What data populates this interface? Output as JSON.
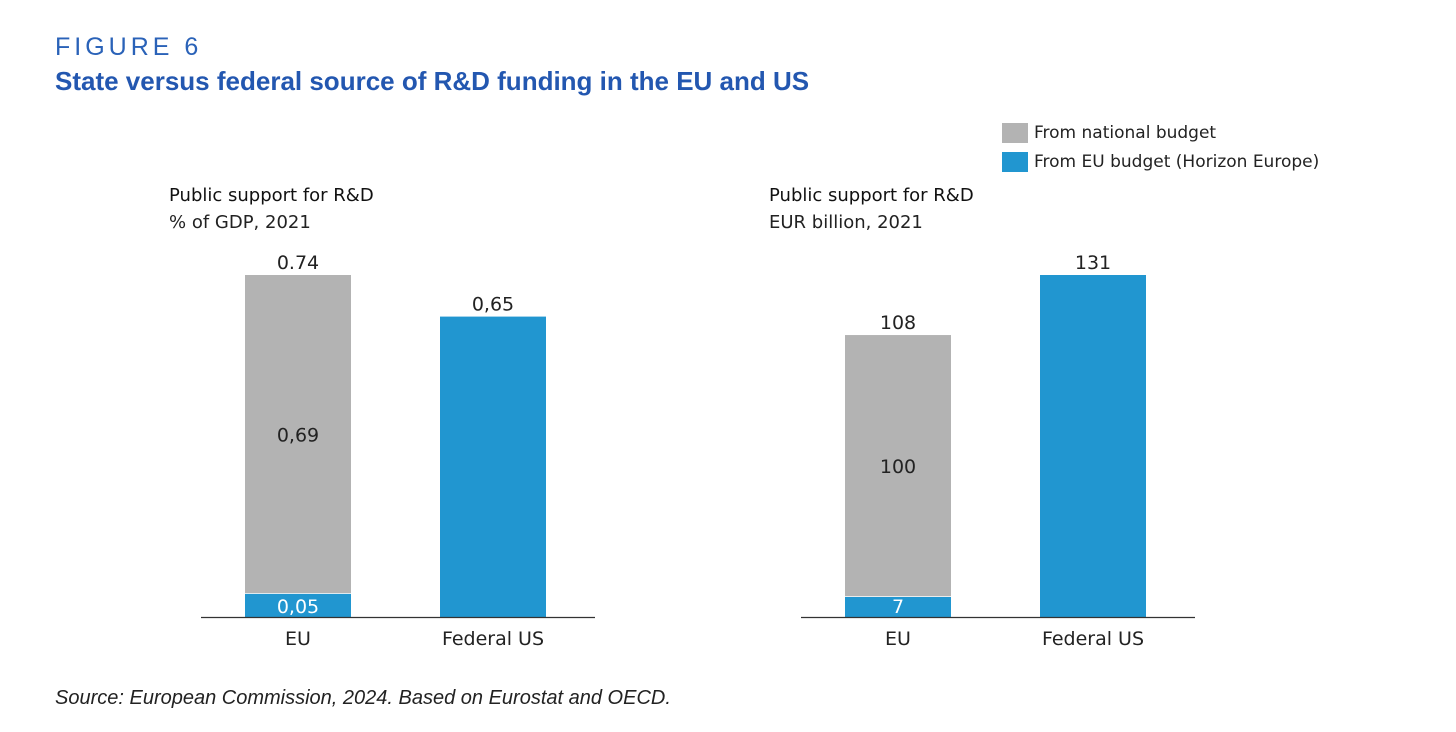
{
  "figure": {
    "label": "FIGURE 6",
    "title": "State versus federal source of R&D funding in the EU and US"
  },
  "legend": {
    "items": [
      {
        "label": "From national budget",
        "color": "#b3b3b3"
      },
      {
        "label": "From EU budget (Horizon Europe)",
        "color": "#2196d0"
      }
    ]
  },
  "colors": {
    "national": "#b3b3b3",
    "eu": "#2196d0",
    "axis": "#333333",
    "text": "#222222"
  },
  "chart_data": [
    {
      "type": "bar",
      "stacked": true,
      "title": "Public support for R&D",
      "subtitle": "% of GDP, 2021",
      "categories": [
        "EU",
        "Federal US"
      ],
      "series": [
        {
          "name": "From EU budget (Horizon Europe)",
          "values": [
            0.05,
            0.65
          ],
          "labels": [
            "0,05",
            "0,65"
          ]
        },
        {
          "name": "From national budget",
          "values": [
            0.69,
            0
          ],
          "labels": [
            "0,69",
            ""
          ]
        }
      ],
      "totals": [
        0.74,
        null
      ],
      "total_labels": [
        "0.74",
        ""
      ],
      "ylim": [
        0,
        0.74
      ]
    },
    {
      "type": "bar",
      "stacked": true,
      "title": "Public support for R&D",
      "subtitle": "EUR billion, 2021",
      "categories": [
        "EU",
        "Federal US"
      ],
      "series": [
        {
          "name": "From EU budget (Horizon Europe)",
          "values": [
            7,
            131
          ],
          "labels": [
            "7",
            "131"
          ]
        },
        {
          "name": "From national budget",
          "values": [
            100,
            0
          ],
          "labels": [
            "100",
            ""
          ]
        }
      ],
      "totals": [
        108,
        null
      ],
      "total_labels": [
        "108",
        ""
      ],
      "ylim": [
        0,
        131
      ]
    }
  ],
  "source": "Source: European Commission, 2024. Based on Eurostat and OECD."
}
